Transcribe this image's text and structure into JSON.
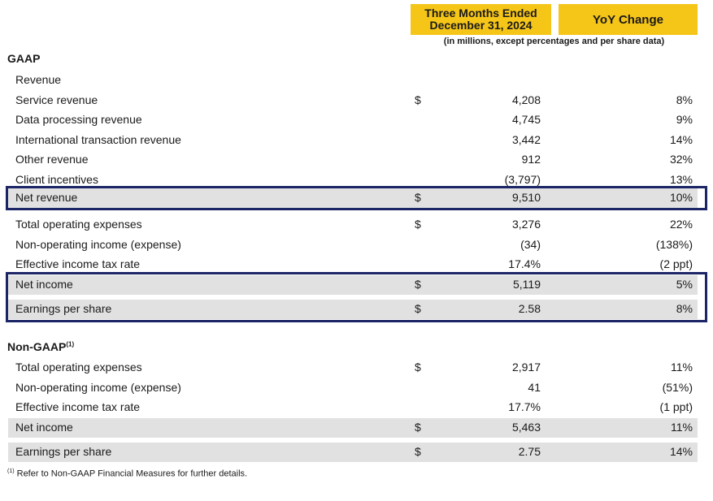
{
  "header": {
    "period_line1": "Three Months Ended",
    "period_line2": "December 31, 2024",
    "yoy": "YoY Change",
    "note": "(in millions, except percentages and per share data)"
  },
  "gaap": {
    "title": "GAAP",
    "revenue_label": "Revenue",
    "rows": [
      {
        "label": "Service revenue",
        "currency": "$",
        "value": "4,208",
        "change": "8%"
      },
      {
        "label": "Data processing revenue",
        "currency": "",
        "value": "4,745",
        "change": "9%"
      },
      {
        "label": "International transaction revenue",
        "currency": "",
        "value": "3,442",
        "change": "14%"
      },
      {
        "label": "Other revenue",
        "currency": "",
        "value": "912",
        "change": "32%"
      },
      {
        "label": "Client incentives",
        "currency": "",
        "value": "(3,797)",
        "change": "13%"
      },
      {
        "label": "Net revenue",
        "currency": "$",
        "value": "9,510",
        "change": "10%"
      },
      {
        "label": "Total operating expenses",
        "currency": "$",
        "value": "3,276",
        "change": "22%"
      },
      {
        "label": "Non-operating income (expense)",
        "currency": "",
        "value": "(34)",
        "change": "(138%)"
      },
      {
        "label": "Effective income tax rate",
        "currency": "",
        "value": "17.4%",
        "change": "(2 ppt)"
      },
      {
        "label": "Net income",
        "currency": "$",
        "value": "5,119",
        "change": "5%"
      },
      {
        "label": "Earnings per share",
        "currency": "$",
        "value": "2.58",
        "change": "8%"
      }
    ]
  },
  "nongaap": {
    "title": "Non-GAAP",
    "title_sup": "(1)",
    "rows": [
      {
        "label": "Total operating expenses",
        "currency": "$",
        "value": "2,917",
        "change": "11%"
      },
      {
        "label": "Non-operating income (expense)",
        "currency": "",
        "value": "41",
        "change": "(51%)"
      },
      {
        "label": "Effective income tax rate",
        "currency": "",
        "value": "17.7%",
        "change": "(1 ppt)"
      },
      {
        "label": "Net income",
        "currency": "$",
        "value": "5,463",
        "change": "11%"
      },
      {
        "label": "Earnings per share",
        "currency": "$",
        "value": "2.75",
        "change": "14%"
      }
    ]
  },
  "footnote": {
    "marker": "(1)",
    "text": " Refer to Non-GAAP Financial Measures for further details."
  }
}
